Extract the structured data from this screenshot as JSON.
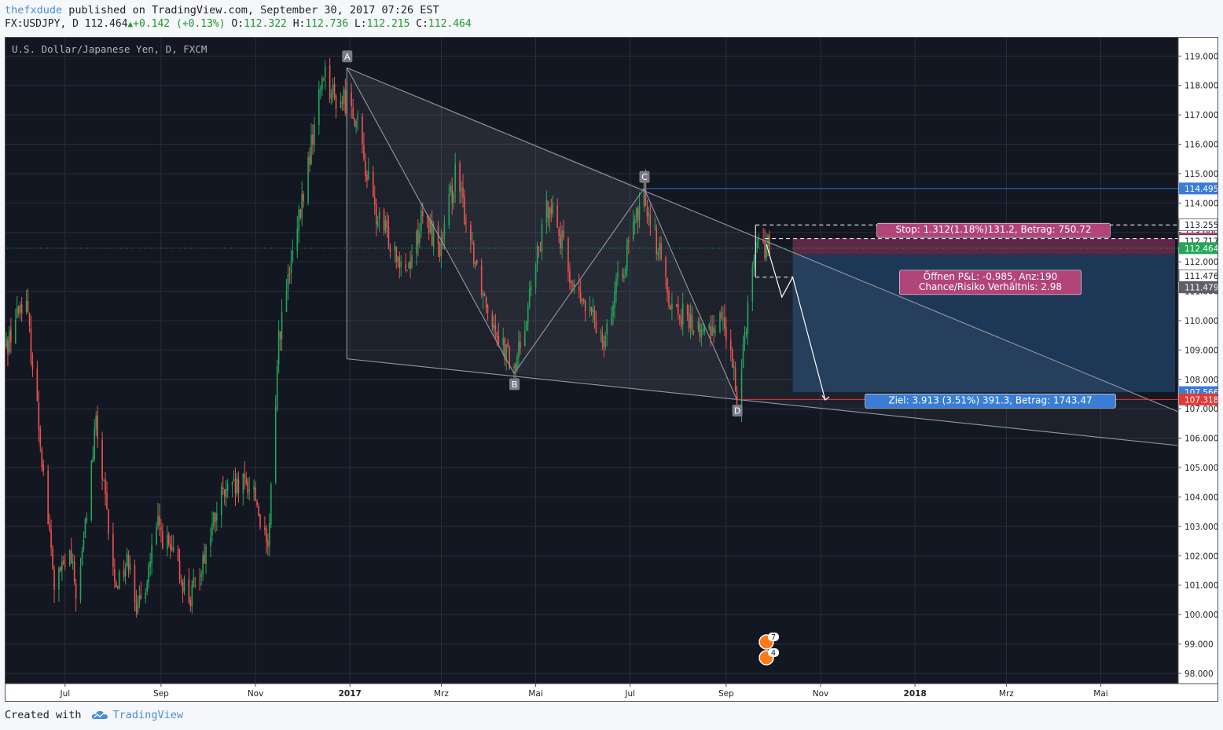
{
  "header": {
    "author": "thefxdude",
    "published_text": " published on TradingView.com, September 30, 2017 07:26 EST",
    "symbol": "FX:USDJPY, D ",
    "last": "112.464",
    "change": "+0.142",
    "change_pct": " (+0.13%)",
    "o_label": "O:",
    "o_value": "112.322",
    "h_label": "H:",
    "h_value": "112.736",
    "l_label": "L:",
    "l_value": "112.215",
    "c_label": "C:",
    "c_value": "112.464"
  },
  "footer": {
    "created_with": "Created with",
    "brand": "TradingView"
  },
  "colors": {
    "background": "#131722",
    "grid": "#2a2e39",
    "up": "#26a65b",
    "down": "#ef5350",
    "stop_zone": "#6b2c4c",
    "target_zone": "#1f3b5c",
    "blue_line": "#2962ff",
    "red_line": "#ff2222"
  },
  "chart_data": {
    "type": "candlestick",
    "title": "U.S. Dollar/Japanese Yen, D, FXCM",
    "y_ticks": [
      "119.000",
      "118.000",
      "117.000",
      "116.000",
      "115.000",
      "114.000",
      "113.000",
      "112.000",
      "111.000",
      "110.000",
      "109.000",
      "108.000",
      "107.000",
      "106.000",
      "105.000",
      "104.000",
      "103.000",
      "102.000",
      "101.000",
      "100.000",
      "99.000",
      "98.000"
    ],
    "x_ticks": [
      {
        "label": "Jul",
        "date": "2016-07-01"
      },
      {
        "label": "Sep",
        "date": "2016-09-01"
      },
      {
        "label": "Nov",
        "date": "2016-11-01"
      },
      {
        "label": "2017",
        "date": "2017-01-01"
      },
      {
        "label": "Mrz",
        "date": "2017-03-01"
      },
      {
        "label": "Mai",
        "date": "2017-05-01"
      },
      {
        "label": "Jul",
        "date": "2017-07-01"
      },
      {
        "label": "Sep",
        "date": "2017-09-01"
      },
      {
        "label": "Nov",
        "date": "2017-11-01"
      },
      {
        "label": "2018",
        "date": "2018-01-01"
      },
      {
        "label": "Mrz",
        "date": "2018-03-01"
      },
      {
        "label": "Mai",
        "date": "2018-05-01"
      }
    ],
    "x_range": [
      "2016-05-23",
      "2018-06-20"
    ],
    "y_range": [
      97.65,
      119.65
    ],
    "price_path": [
      [
        "2016-05-23",
        109.0
      ],
      [
        "2016-06-05",
        111.0
      ],
      [
        "2016-06-14",
        106.5
      ],
      [
        "2016-06-24",
        101.0
      ],
      [
        "2016-07-04",
        102.0
      ],
      [
        "2016-07-09",
        100.5
      ],
      [
        "2016-07-21",
        106.5
      ],
      [
        "2016-08-02",
        101.0
      ],
      [
        "2016-08-12",
        102.0
      ],
      [
        "2016-08-17",
        100.0
      ],
      [
        "2016-08-30",
        103.0
      ],
      [
        "2016-09-08",
        102.0
      ],
      [
        "2016-09-20",
        100.5
      ],
      [
        "2016-10-10",
        104.0
      ],
      [
        "2016-10-30",
        104.5
      ],
      [
        "2016-11-09",
        102.0
      ],
      [
        "2016-11-16",
        109.5
      ],
      [
        "2016-11-28",
        113.0
      ],
      [
        "2016-12-15",
        118.6
      ],
      [
        "2016-12-22",
        117.5
      ],
      [
        "2017-01-02",
        117.5
      ],
      [
        "2017-01-18",
        113.5
      ],
      [
        "2017-02-07",
        111.8
      ],
      [
        "2017-02-17",
        113.5
      ],
      [
        "2017-03-01",
        112.5
      ],
      [
        "2017-03-10",
        115.0
      ],
      [
        "2017-03-28",
        111.0
      ],
      [
        "2017-04-17",
        108.2
      ],
      [
        "2017-04-20",
        109.0
      ],
      [
        "2017-05-10",
        114.2
      ],
      [
        "2017-05-26",
        111.0
      ],
      [
        "2017-06-14",
        109.5
      ],
      [
        "2017-07-10",
        114.4
      ],
      [
        "2017-07-28",
        110.5
      ],
      [
        "2017-08-17",
        109.5
      ],
      [
        "2017-08-30",
        110.2
      ],
      [
        "2017-09-08",
        107.4
      ],
      [
        "2017-09-20",
        112.7
      ],
      [
        "2017-09-29",
        112.46
      ]
    ],
    "last_price": 112.464,
    "price_labels": [
      {
        "value": 114.495,
        "text": "114.495",
        "style": "blue"
      },
      {
        "value": 113.255,
        "text": "113.255",
        "style": "dark"
      },
      {
        "value": 112.791,
        "text": "112.791",
        "style": "stop"
      },
      {
        "value": 112.717,
        "text": "112.717",
        "style": "light"
      },
      {
        "value": 112.464,
        "text": "112.464",
        "style": "green"
      },
      {
        "value": 111.476,
        "text": "111.476",
        "style": "light"
      },
      {
        "value": 111.479,
        "text": "111.479",
        "style": "gray"
      },
      {
        "value": 107.566,
        "text": "107.566",
        "style": "blue"
      },
      {
        "value": 107.318,
        "text": "107.318",
        "style": "red"
      }
    ],
    "pattern_points": [
      {
        "label": "A",
        "date": "2016-12-30",
        "price": 118.6
      },
      {
        "label": "B",
        "date": "2017-04-17",
        "price": 108.2
      },
      {
        "label": "C",
        "date": "2017-07-10",
        "price": 114.5
      },
      {
        "label": "D",
        "date": "2017-09-08",
        "price": 107.3
      }
    ],
    "trendlines": [
      {
        "from": [
          "2016-12-30",
          118.6
        ],
        "to": [
          "2018-06-20",
          106.9
        ]
      },
      {
        "from": [
          "2016-12-30",
          108.7
        ],
        "to": [
          "2018-06-20",
          105.75
        ]
      }
    ],
    "position": {
      "entry": 112.25,
      "stop": 112.791,
      "target": 107.566,
      "start": "2017-10-14",
      "end": "2018-06-18",
      "stop_label": "Stop: 1.312(1.18%)131.2, Betrag: 750.72",
      "open_label_1": "Öffnen P&L: -0.985, Anz:190",
      "open_label_2": "Chance/Risiko Verhältnis: 2.98",
      "target_label": "Ziel: 3.913 (3.51%) 391.3, Betrag: 1743.47"
    },
    "horizontal_lines": [
      {
        "value": 114.495,
        "from": "2017-07-10",
        "color": "blue"
      },
      {
        "value": 107.318,
        "from": "2017-09-08",
        "color": "red"
      }
    ],
    "event_badges": [
      {
        "text": "7"
      },
      {
        "text": "4"
      }
    ]
  }
}
